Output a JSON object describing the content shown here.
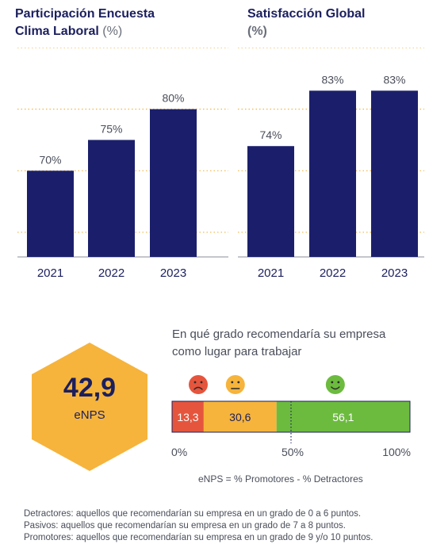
{
  "chart_data": [
    {
      "type": "bar",
      "title_line1": "Participación Encuesta",
      "title_line2": "Clima Laboral",
      "unit": "(%)",
      "categories": [
        "2021",
        "2022",
        "2023"
      ],
      "values": [
        70,
        75,
        80
      ],
      "value_labels": [
        "70%",
        "75%",
        "80%"
      ],
      "ylim": [
        56,
        90
      ],
      "grid": true,
      "bar_color": "#1b1f6b",
      "grid_color": "#f2b544"
    },
    {
      "type": "bar",
      "title_line1": "Satisfacción Global",
      "unit": "(%)",
      "categories": [
        "2021",
        "2022",
        "2023"
      ],
      "values": [
        74,
        83,
        83
      ],
      "value_labels": [
        "74%",
        "83%",
        "83%"
      ],
      "ylim": [
        56,
        90
      ],
      "grid": true,
      "bar_color": "#1b1f6b",
      "grid_color": "#f2b544"
    },
    {
      "type": "bar",
      "orientation": "horizontal-stacked",
      "segments": [
        {
          "label": "13,3",
          "value": 13.3,
          "color": "#e5553d",
          "face": "sad"
        },
        {
          "label": "30,6",
          "value": 30.6,
          "color": "#f6b43c",
          "face": "neutral"
        },
        {
          "label": "56,1",
          "value": 56.1,
          "color": "#6cbb3f",
          "face": "happy"
        }
      ],
      "axis_ticks": [
        "0%",
        "50%",
        "100%"
      ],
      "xlim": [
        0,
        100
      ],
      "midline": 50
    }
  ],
  "enps": {
    "value": "42,9",
    "label": "eNPS",
    "hex_color": "#f6b43c"
  },
  "question_line1": "En qué grado recomendaría su empresa",
  "question_line2": "como lugar para trabajar",
  "formula": "eNPS = % Promotores - % Detractores",
  "notes": [
    "Detractores: aquellos que recomendarían su empresa en un grado de 0 a 6 puntos.",
    "Pasivos: aquellos que recomendarían su empresa en un grado de 7 a 8 puntos.",
    "Promotores: aquellos que recomendarían su empresa en un grado de 9 y/o 10 puntos."
  ]
}
